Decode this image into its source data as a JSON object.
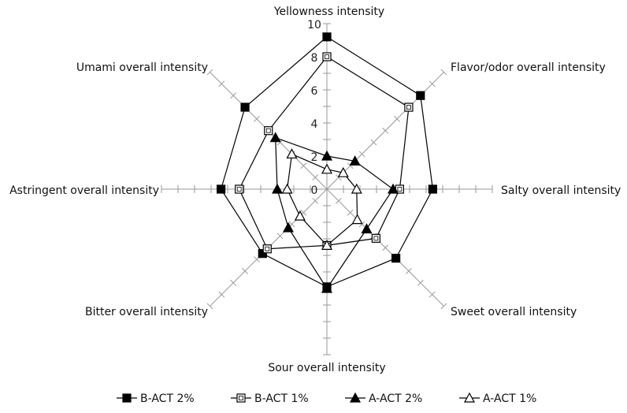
{
  "chart_data": {
    "type": "radar",
    "categories": [
      "Yellowness intensity",
      "Flavor/odor overall intensity",
      "Salty overall intensity",
      "Sweet overall intensity",
      "Sour overall intensity",
      "Bitter overall intensity",
      "Astringent overall intensity",
      "Umami overall intensity"
    ],
    "radial_range": [
      0,
      10
    ],
    "radial_ticks": [
      0,
      2,
      4,
      6,
      8,
      10
    ],
    "grid": false,
    "legend_position": "bottom",
    "series": [
      {
        "name": "B-ACT 2%",
        "marker": "filled-square",
        "values": [
          9.2,
          8.0,
          6.4,
          5.9,
          5.9,
          5.5,
          6.4,
          7.0
        ]
      },
      {
        "name": "B-ACT 1%",
        "marker": "open-square",
        "values": [
          8.0,
          7.0,
          4.4,
          4.2,
          3.4,
          5.1,
          5.3,
          5.0
        ]
      },
      {
        "name": "A-ACT 2%",
        "marker": "filled-triangle",
        "values": [
          2.0,
          2.4,
          4.0,
          3.4,
          6.0,
          3.3,
          3.0,
          4.4
        ]
      },
      {
        "name": "A-ACT 1%",
        "marker": "open-triangle",
        "values": [
          1.2,
          1.4,
          1.8,
          2.6,
          3.4,
          2.3,
          2.4,
          3.0
        ]
      }
    ]
  }
}
